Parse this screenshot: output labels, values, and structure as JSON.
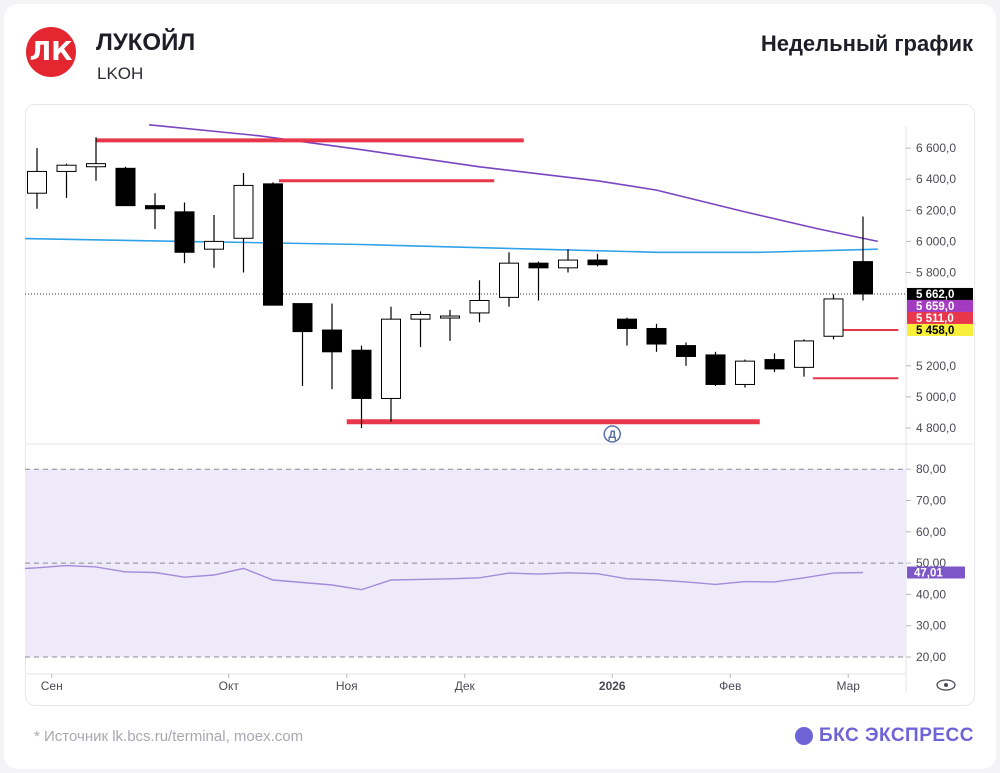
{
  "header": {
    "logo_text": "ЛК",
    "company": "ЛУКОЙЛ",
    "ticker": "LKOH",
    "period": "Недельный график"
  },
  "footer": {
    "source": "* Источник lk.bcs.ru/terminal, moex.com",
    "brand": "БКС ЭКСПРЕСС"
  },
  "colors": {
    "bull_fill": "#ffffff",
    "bear_fill": "#000000",
    "level_red": "#e8364a",
    "ma_purple": "#7a44c0",
    "ma_blue": "#2fa2e8",
    "rsi_line": "#a38cd9",
    "rsi_band": "#eeeaf9",
    "label_dark": "#000000",
    "label_purple": "#a23bc0",
    "label_red": "#e8364a",
    "label_yellow": "#f7ef3a",
    "rsi_label": "#7d57c9"
  },
  "chart_data": {
    "type": "candlestick",
    "title": "Недельный график",
    "price_axis": {
      "ticks": [
        "6 600,0",
        "6 400,0",
        "6 200,0",
        "6 000,0",
        "5 800,0",
        "5 200,0",
        "5 000,0",
        "4 800,0"
      ],
      "tick_values": [
        6600,
        6400,
        6200,
        6000,
        5800,
        5200,
        5000,
        4800
      ],
      "range": [
        4760,
        6750
      ]
    },
    "x_labels": [
      {
        "label": "Сен",
        "index": 0.5
      },
      {
        "label": "Окт",
        "index": 6.5
      },
      {
        "label": "Ноя",
        "index": 10.5
      },
      {
        "label": "Дек",
        "index": 14.5
      },
      {
        "label": "2026",
        "index": 19.5
      },
      {
        "label": "Фев",
        "index": 23.5
      },
      {
        "label": "Мар",
        "index": 27.5
      }
    ],
    "candles": [
      {
        "o": 6310,
        "h": 6600,
        "l": 6210,
        "c": 6450
      },
      {
        "o": 6450,
        "h": 6500,
        "l": 6280,
        "c": 6490
      },
      {
        "o": 6480,
        "h": 6670,
        "l": 6390,
        "c": 6500
      },
      {
        "o": 6470,
        "h": 6480,
        "l": 6230,
        "c": 6230
      },
      {
        "o": 6230,
        "h": 6310,
        "l": 6080,
        "c": 6210
      },
      {
        "o": 6190,
        "h": 6250,
        "l": 5860,
        "c": 5930
      },
      {
        "o": 5950,
        "h": 6170,
        "l": 5830,
        "c": 6000
      },
      {
        "o": 6020,
        "h": 6440,
        "l": 5800,
        "c": 6360
      },
      {
        "o": 6370,
        "h": 6380,
        "l": 5590,
        "c": 5590
      },
      {
        "o": 5600,
        "h": 5600,
        "l": 5070,
        "c": 5420
      },
      {
        "o": 5430,
        "h": 5600,
        "l": 5050,
        "c": 5290
      },
      {
        "o": 5300,
        "h": 5330,
        "l": 4800,
        "c": 4990
      },
      {
        "o": 4990,
        "h": 5580,
        "l": 4840,
        "c": 5500
      },
      {
        "o": 5500,
        "h": 5550,
        "l": 5320,
        "c": 5530
      },
      {
        "o": 5520,
        "h": 5560,
        "l": 5360,
        "c": 5520
      },
      {
        "o": 5540,
        "h": 5750,
        "l": 5480,
        "c": 5620
      },
      {
        "o": 5640,
        "h": 5930,
        "l": 5580,
        "c": 5860
      },
      {
        "o": 5860,
        "h": 5870,
        "l": 5620,
        "c": 5830
      },
      {
        "o": 5830,
        "h": 5950,
        "l": 5800,
        "c": 5880
      },
      {
        "o": 5880,
        "h": 5920,
        "l": 5840,
        "c": 5850
      },
      {
        "o": 5500,
        "h": 5510,
        "l": 5330,
        "c": 5440
      },
      {
        "o": 5440,
        "h": 5470,
        "l": 5290,
        "c": 5340
      },
      {
        "o": 5330,
        "h": 5350,
        "l": 5200,
        "c": 5260
      },
      {
        "o": 5270,
        "h": 5290,
        "l": 5070,
        "c": 5080
      },
      {
        "o": 5080,
        "h": 5240,
        "l": 5060,
        "c": 5230
      },
      {
        "o": 5240,
        "h": 5280,
        "l": 5160,
        "c": 5180
      },
      {
        "o": 5190,
        "h": 5370,
        "l": 5130,
        "c": 5360
      },
      {
        "o": 5390,
        "h": 5660,
        "l": 5370,
        "c": 5630
      },
      {
        "o": 5870,
        "h": 6160,
        "l": 5620,
        "c": 5662
      }
    ],
    "moving_averages": [
      {
        "color": "purple",
        "points": [
          [
            3.8,
            6750
          ],
          [
            7.5,
            6680
          ],
          [
            11,
            6590
          ],
          [
            15,
            6480
          ],
          [
            19,
            6390
          ],
          [
            21,
            6330
          ],
          [
            24,
            6190
          ],
          [
            26.5,
            6080
          ],
          [
            28.5,
            6000
          ]
        ]
      },
      {
        "color": "blue",
        "points": [
          [
            -1,
            6020
          ],
          [
            5,
            6000
          ],
          [
            11,
            5980
          ],
          [
            17,
            5950
          ],
          [
            21,
            5930
          ],
          [
            24.5,
            5930
          ],
          [
            28.5,
            5950
          ]
        ]
      }
    ],
    "levels": [
      {
        "value": 6650,
        "from": 2,
        "to": 16.5,
        "width": 4
      },
      {
        "value": 6390,
        "from": 8.2,
        "to": 15.5,
        "width": 3
      },
      {
        "value": 4840,
        "from": 10.5,
        "to": 24.5,
        "width": 5
      },
      {
        "value": 5430,
        "from": 27,
        "to": 29.2,
        "width": 2
      },
      {
        "value": 5120,
        "from": 26.3,
        "to": 29.2,
        "width": 2
      }
    ],
    "price_labels": [
      {
        "text": "5 662,0",
        "value": 5662,
        "style": "dark"
      },
      {
        "text": "5 659,0",
        "value": 5659,
        "style": "purple"
      },
      {
        "text": "5 511,0",
        "value": 5511,
        "style": "red"
      },
      {
        "text": "5 458,0",
        "value": 5458,
        "style": "yellow"
      }
    ],
    "rsi": {
      "ticks": [
        "80,00",
        "70,00",
        "60,00",
        "50,00",
        "40,00",
        "30,00",
        "20,00"
      ],
      "tick_values": [
        80,
        70,
        60,
        50,
        40,
        30,
        20
      ],
      "range": [
        16,
        88
      ],
      "band": [
        20,
        80
      ],
      "value_label": "47,01",
      "values": [
        48.5,
        49.2,
        48.8,
        47.2,
        47.0,
        45.5,
        46.2,
        48.3,
        44.6,
        43.8,
        43.0,
        41.5,
        44.6,
        44.8,
        45.0,
        45.3,
        46.8,
        46.5,
        46.9,
        46.6,
        45.0,
        44.6,
        44.0,
        43.2,
        44.1,
        44.0,
        45.3,
        46.8,
        47.0
      ]
    },
    "dividend_marker": {
      "text": "Д",
      "index": 19.5
    }
  }
}
